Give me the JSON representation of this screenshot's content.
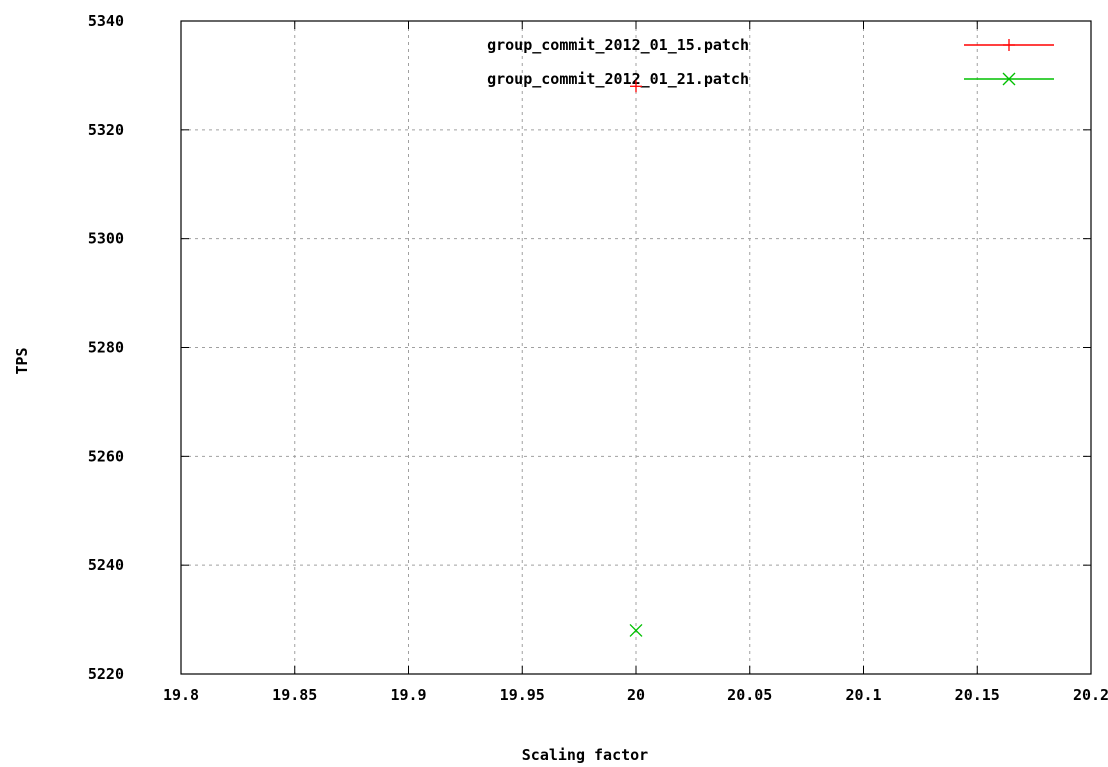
{
  "chart_data": {
    "type": "scatter",
    "xlabel": "Scaling factor",
    "ylabel": "TPS",
    "xlim": [
      19.8,
      20.2
    ],
    "ylim": [
      5220,
      5340
    ],
    "x_ticks": [
      19.8,
      19.85,
      19.9,
      19.95,
      20,
      20.05,
      20.1,
      20.15,
      20.2
    ],
    "x_tick_labels": [
      "19.8",
      "19.85",
      "19.9",
      "19.95",
      "20",
      "20.05",
      "20.1",
      "20.15",
      "20.2"
    ],
    "y_ticks": [
      5220,
      5240,
      5260,
      5280,
      5300,
      5320,
      5340
    ],
    "y_tick_labels": [
      "5220",
      "5240",
      "5260",
      "5280",
      "5300",
      "5320",
      "5340"
    ],
    "grid": true,
    "legend_position": "top-right",
    "series": [
      {
        "name": "group_commit_2012_01_15.patch",
        "color": "#ff0000",
        "marker": "plus",
        "points": [
          {
            "x": 20,
            "y": 5328
          }
        ]
      },
      {
        "name": "group_commit_2012_01_21.patch",
        "color": "#00c000",
        "marker": "cross",
        "points": [
          {
            "x": 20,
            "y": 5228
          }
        ]
      }
    ]
  }
}
